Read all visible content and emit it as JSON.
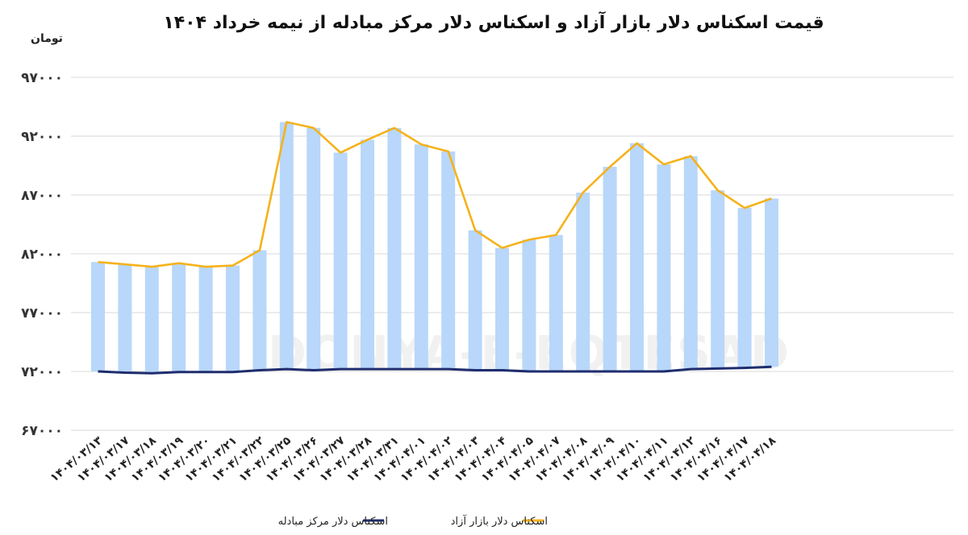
{
  "chart_data": {
    "type": "bar+line",
    "title": "قیمت اسکناس دلار بازار آزاد و اسکناس دلار مرکز مبادله از نیمه خرداد ۱۴۰۴",
    "ylabel": "تومان",
    "ylim": [
      67000,
      97000
    ],
    "yticks": [
      67000,
      72000,
      77000,
      82000,
      87000,
      92000,
      97000
    ],
    "ytick_labels": [
      "۶۷۰۰۰",
      "۷۲۰۰۰",
      "۷۷۰۰۰",
      "۸۲۰۰۰",
      "۸۷۰۰۰",
      "۹۲۰۰۰",
      "۹۷۰۰۰"
    ],
    "grid": true,
    "legend_position": "bottom",
    "categories": [
      "۱۴۰۴/۰۳/۱۳",
      "۱۴۰۴/۰۳/۱۷",
      "۱۴۰۴/۰۳/۱۸",
      "۱۴۰۴/۰۳/۱۹",
      "۱۴۰۴/۰۳/۲۰",
      "۱۴۰۴/۰۳/۲۱",
      "۱۴۰۴/۰۳/۲۲",
      "۱۴۰۴/۰۳/۲۵",
      "۱۴۰۴/۰۳/۲۶",
      "۱۴۰۴/۰۳/۲۷",
      "۱۴۰۴/۰۳/۲۸",
      "۱۴۰۴/۰۳/۳۱",
      "۱۴۰۴/۰۴/۰۱",
      "۱۴۰۴/۰۴/۰۲",
      "۱۴۰۴/۰۴/۰۳",
      "۱۴۰۴/۰۴/۰۴",
      "۱۴۰۴/۰۴/۰۵",
      "۱۴۰۴/۰۴/۰۷",
      "۱۴۰۴/۰۴/۰۸",
      "۱۴۰۴/۰۴/۰۹",
      "۱۴۰۴/۰۴/۱۰",
      "۱۴۰۴/۰۴/۱۱",
      "۱۴۰۴/۰۴/۱۲",
      "۱۴۰۴/۰۴/۱۶",
      "۱۴۰۴/۰۴/۱۷",
      "۱۴۰۴/۰۴/۱۸"
    ],
    "series": [
      {
        "name": "اسکناس دلار بازار آزاد",
        "type": "bar+line",
        "bar_color": "#b8d7fa",
        "line_color": "#f5b21b",
        "values": [
          81300,
          81100,
          80900,
          81200,
          80900,
          81000,
          82300,
          93200,
          92700,
          90600,
          91700,
          92700,
          91300,
          90700,
          84000,
          82500,
          83200,
          83600,
          87200,
          89400,
          91400,
          89600,
          90300,
          87400,
          85900,
          86700
        ]
      },
      {
        "name": "اسکناس دلار مرکز مبادله",
        "type": "line",
        "line_color": "#1f2d6e",
        "values": [
          72000,
          71900,
          71850,
          71950,
          71950,
          71950,
          72100,
          72200,
          72100,
          72200,
          72200,
          72200,
          72200,
          72200,
          72100,
          72100,
          72000,
          72000,
          72000,
          72000,
          72000,
          72000,
          72200,
          72250,
          72300,
          72400
        ]
      }
    ],
    "watermark": "DONYA-E-EQTESAD"
  }
}
